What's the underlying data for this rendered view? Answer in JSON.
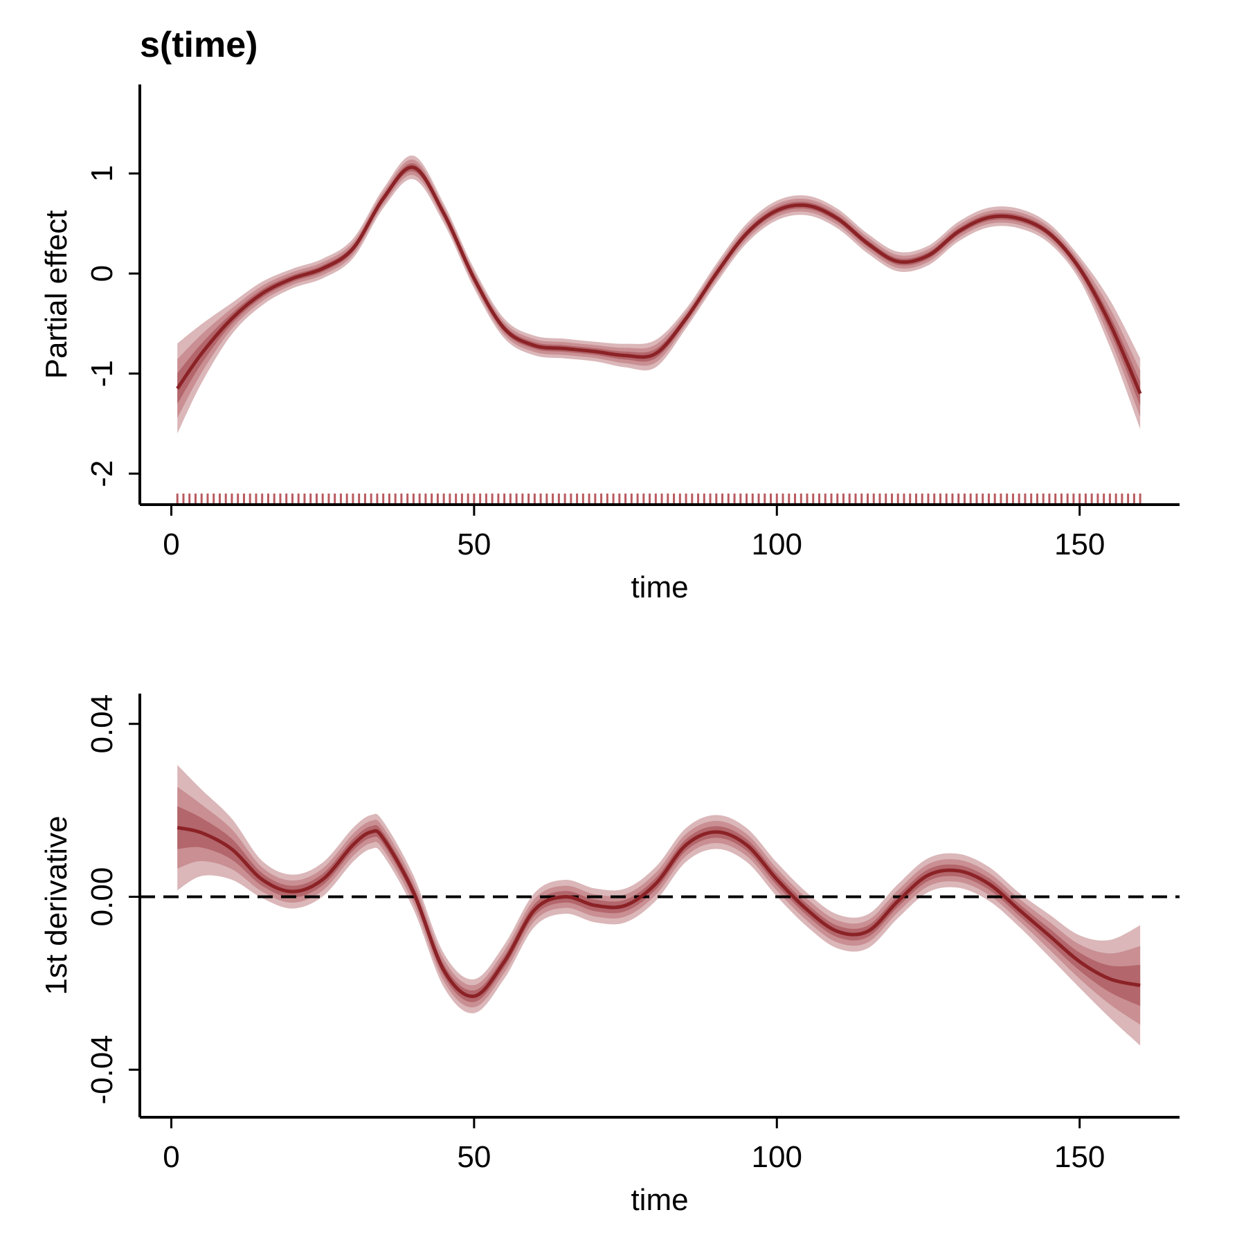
{
  "chart_data": [
    {
      "type": "line",
      "title": "s(time)",
      "xlabel": "time",
      "ylabel": "Partial effect",
      "x": [
        1,
        5,
        10,
        15,
        20,
        25,
        30,
        35,
        40,
        45,
        50,
        55,
        60,
        65,
        70,
        75,
        80,
        85,
        90,
        95,
        100,
        105,
        110,
        115,
        120,
        125,
        130,
        135,
        140,
        145,
        150,
        155,
        160
      ],
      "values": [
        -1.15,
        -0.8,
        -0.45,
        -0.2,
        -0.05,
        0.05,
        0.25,
        0.75,
        1.06,
        0.6,
        -0.05,
        -0.55,
        -0.72,
        -0.75,
        -0.78,
        -0.82,
        -0.8,
        -0.45,
        0.0,
        0.4,
        0.63,
        0.68,
        0.55,
        0.3,
        0.12,
        0.18,
        0.42,
        0.56,
        0.55,
        0.4,
        0.05,
        -0.5,
        -1.2
      ],
      "se": [
        0.23,
        0.15,
        0.08,
        0.06,
        0.05,
        0.05,
        0.05,
        0.05,
        0.06,
        0.05,
        0.05,
        0.05,
        0.05,
        0.05,
        0.05,
        0.06,
        0.07,
        0.05,
        0.05,
        0.05,
        0.05,
        0.05,
        0.05,
        0.05,
        0.05,
        0.05,
        0.05,
        0.05,
        0.05,
        0.05,
        0.06,
        0.12,
        0.18
      ],
      "bands": [
        {
          "multiplier": 1.96,
          "color": "#dbb7b9"
        },
        {
          "multiplier": 1.28,
          "color": "#c98f93"
        },
        {
          "multiplier": 0.67,
          "color": "#b3666b"
        }
      ],
      "color": "#8b2226",
      "rug_color": "#b85a5f",
      "rug": [
        1,
        2,
        3,
        4,
        5,
        6,
        7,
        8,
        9,
        10,
        11,
        12,
        13,
        14,
        15,
        16,
        17,
        18,
        19,
        20,
        21,
        22,
        23,
        24,
        25,
        26,
        27,
        28,
        29,
        30,
        31,
        32,
        33,
        34,
        35,
        36,
        37,
        38,
        39,
        40,
        41,
        42,
        43,
        44,
        45,
        46,
        47,
        48,
        49,
        50,
        51,
        52,
        53,
        54,
        55,
        56,
        57,
        58,
        59,
        60,
        61,
        62,
        63,
        64,
        65,
        66,
        67,
        68,
        69,
        70,
        71,
        72,
        73,
        74,
        75,
        76,
        77,
        78,
        79,
        80,
        81,
        82,
        83,
        84,
        85,
        86,
        87,
        88,
        89,
        90,
        91,
        92,
        93,
        94,
        95,
        96,
        97,
        98,
        99,
        100,
        101,
        102,
        103,
        104,
        105,
        106,
        107,
        108,
        109,
        110,
        111,
        112,
        113,
        114,
        115,
        116,
        117,
        118,
        119,
        120,
        121,
        122,
        123,
        124,
        125,
        126,
        127,
        128,
        129,
        130,
        131,
        132,
        133,
        134,
        135,
        136,
        137,
        138,
        139,
        140,
        141,
        142,
        143,
        144,
        145,
        146,
        147,
        148,
        149,
        150,
        151,
        152,
        153,
        154,
        155,
        156,
        157,
        158,
        159,
        160
      ],
      "xlim": [
        -5.2,
        166.5
      ],
      "ylim": [
        -2.31,
        1.89
      ],
      "xticks": [
        0,
        50,
        100,
        150
      ],
      "yticks": [
        -2,
        -1,
        0,
        1
      ]
    },
    {
      "type": "line",
      "xlabel": "time",
      "ylabel": "1st derivative",
      "x": [
        1,
        5,
        10,
        15,
        20,
        25,
        30,
        33,
        35,
        40,
        45,
        50,
        55,
        60,
        65,
        70,
        75,
        80,
        85,
        90,
        95,
        100,
        105,
        110,
        115,
        120,
        125,
        130,
        135,
        140,
        145,
        150,
        155,
        160
      ],
      "values": [
        0.016,
        0.0148,
        0.011,
        0.004,
        0.0012,
        0.004,
        0.012,
        0.015,
        0.0135,
        0.001,
        -0.017,
        -0.023,
        -0.015,
        -0.003,
        0.0,
        -0.002,
        -0.002,
        0.003,
        0.012,
        0.015,
        0.012,
        0.004,
        -0.003,
        -0.008,
        -0.008,
        -0.001,
        0.005,
        0.006,
        0.003,
        -0.003,
        -0.009,
        -0.015,
        -0.019,
        -0.0205
      ],
      "se": [
        0.0074,
        0.0051,
        0.0036,
        0.0022,
        0.002,
        0.002,
        0.002,
        0.002,
        0.002,
        0.002,
        0.002,
        0.002,
        0.002,
        0.002,
        0.002,
        0.002,
        0.002,
        0.002,
        0.002,
        0.002,
        0.002,
        0.002,
        0.002,
        0.002,
        0.002,
        0.002,
        0.002,
        0.002,
        0.002,
        0.002,
        0.0025,
        0.0031,
        0.0046,
        0.0071
      ],
      "bands": [
        {
          "multiplier": 1.96,
          "color": "#dbb7b9"
        },
        {
          "multiplier": 1.28,
          "color": "#c98f93"
        },
        {
          "multiplier": 0.67,
          "color": "#b3666b"
        }
      ],
      "color": "#8b2226",
      "hline": 0,
      "xlim": [
        -5.2,
        166.5
      ],
      "ylim": [
        -0.051,
        0.047
      ],
      "xticks": [
        0,
        50,
        100,
        150
      ],
      "yticks": [
        -0.04,
        {
          "value": 0,
          "label": "0.00"
        },
        0.04
      ]
    }
  ]
}
